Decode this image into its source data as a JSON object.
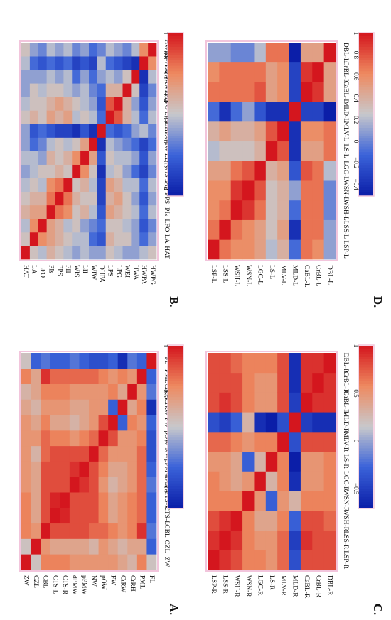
{
  "figure": {
    "panel_letters": [
      "A.",
      "B.",
      "C.",
      "D."
    ]
  },
  "chart_data": [
    {
      "type": "heatmap",
      "panel": "A.",
      "variables": [
        "ZW",
        "CZL",
        "CBL",
        "CTS-L",
        "CTS-R",
        "dPMW",
        "pPMW",
        "NW",
        "pOW",
        "FW",
        "CrRW",
        "CrRH",
        "PML",
        "FL"
      ],
      "colorbar": {
        "min": -0.7,
        "max": 1,
        "ticks": [
          1,
          0.5,
          0,
          -0.5
        ]
      },
      "colormap": [
        "#0b1ea8",
        "#3b63d9",
        "#c8c8cc",
        "#ee8a60",
        "#d4161e"
      ],
      "values": [
        [
          1,
          0.2,
          0.6,
          0.6,
          0.6,
          0.5,
          0.5,
          0.5,
          0.5,
          0.5,
          0.4,
          0.3,
          0.6,
          0.2
        ],
        [
          0.2,
          1,
          0.5,
          0.4,
          0.4,
          0.4,
          0.4,
          0.3,
          0.5,
          0.4,
          0.3,
          0.4,
          0.4,
          -0.3
        ],
        [
          0.6,
          0.5,
          1,
          0.8,
          0.8,
          0.8,
          0.8,
          0.7,
          0.7,
          0.6,
          0.5,
          0.6,
          0.9,
          -0.2
        ],
        [
          0.6,
          0.4,
          0.8,
          1,
          0.95,
          0.8,
          0.8,
          0.8,
          0.6,
          0.4,
          0.5,
          0.6,
          0.7,
          -0.3
        ],
        [
          0.6,
          0.4,
          0.8,
          0.95,
          1,
          0.8,
          0.8,
          0.8,
          0.6,
          0.4,
          0.5,
          0.6,
          0.7,
          -0.3
        ],
        [
          0.5,
          0.4,
          0.8,
          0.8,
          0.8,
          1,
          0.9,
          0.8,
          0.5,
          0.3,
          0.4,
          0.5,
          0.7,
          -0.2
        ],
        [
          0.5,
          0.4,
          0.8,
          0.8,
          0.8,
          0.9,
          1,
          0.8,
          0.6,
          0.4,
          0.4,
          0.5,
          0.7,
          -0.3
        ],
        [
          0.5,
          0.3,
          0.7,
          0.8,
          0.8,
          0.8,
          0.8,
          1,
          0.7,
          0.5,
          0.5,
          0.5,
          0.7,
          -0.4
        ],
        [
          0.5,
          0.5,
          0.7,
          0.6,
          0.6,
          0.5,
          0.6,
          0.7,
          1,
          0.8,
          0.5,
          0.5,
          0.6,
          -0.4
        ],
        [
          0.5,
          0.4,
          0.6,
          0.4,
          0.4,
          0.3,
          0.4,
          0.5,
          0.8,
          1,
          -0.3,
          0.6,
          0.5,
          -0.3
        ],
        [
          0.4,
          0.3,
          0.5,
          0.5,
          0.5,
          0.4,
          0.4,
          0.5,
          0.5,
          -0.3,
          1,
          0.4,
          0.6,
          -0.6
        ],
        [
          0.3,
          0.4,
          0.6,
          0.6,
          0.6,
          0.5,
          0.5,
          0.5,
          0.5,
          0.6,
          0.4,
          1,
          0.5,
          -0.2
        ],
        [
          0.6,
          0.4,
          0.9,
          0.7,
          0.7,
          0.7,
          0.7,
          0.7,
          0.6,
          0.5,
          0.6,
          0.5,
          1,
          -0.3
        ],
        [
          0.2,
          -0.3,
          -0.2,
          -0.3,
          -0.3,
          -0.2,
          -0.3,
          -0.4,
          -0.4,
          -0.3,
          -0.6,
          -0.2,
          -0.3,
          1
        ]
      ]
    },
    {
      "type": "heatmap",
      "panel": "B.",
      "variables": [
        "HAT",
        "LA",
        "LFO",
        "PIs",
        "PPS",
        "PII",
        "WIS",
        "LII",
        "WIW",
        "DHPA",
        "LPS",
        "LPG",
        "WEI",
        "HWA",
        "HWPA",
        "HWPG"
      ],
      "colorbar": {
        "min": -0.5,
        "max": 1,
        "ticks": [
          1,
          0.8,
          0.6,
          0.4,
          0.2,
          0,
          -0.2,
          -0.4
        ]
      },
      "colormap": [
        "#0b1ea8",
        "#3b63d9",
        "#c8c8cc",
        "#ee8a60",
        "#d4161e"
      ],
      "values": [
        [
          1,
          0.3,
          0.2,
          0.4,
          0.3,
          0.2,
          0.1,
          0.2,
          0.1,
          0.1,
          0.3,
          0.2,
          0.1,
          0.1,
          0.2,
          0.3
        ],
        [
          0.3,
          1,
          0.6,
          0.5,
          0.4,
          0.3,
          0.2,
          0.2,
          -0.1,
          -0.2,
          0.4,
          0.3,
          0.3,
          0.1,
          -0.1,
          0.1
        ],
        [
          0.2,
          0.6,
          1,
          0.5,
          0.4,
          0.2,
          0.3,
          0.1,
          0,
          -0.1,
          0.3,
          0.3,
          0.2,
          0.1,
          -0.2,
          0
        ],
        [
          0.4,
          0.5,
          0.5,
          1,
          0.7,
          0.6,
          0.3,
          0.4,
          0.2,
          -0.2,
          0.5,
          0.4,
          0.3,
          0.2,
          -0.1,
          0.2
        ],
        [
          0.3,
          0.4,
          0.4,
          0.7,
          1,
          0.7,
          0.4,
          0.3,
          0.3,
          -0.3,
          0.4,
          0.5,
          0.3,
          0.1,
          -0.2,
          0.1
        ],
        [
          0.2,
          0.3,
          0.2,
          0.6,
          0.7,
          1,
          0.3,
          0.4,
          0.2,
          -0.3,
          0.5,
          0.4,
          0.2,
          0.2,
          -0.1,
          0.2
        ],
        [
          0.1,
          0.2,
          0.3,
          0.3,
          0.4,
          0.3,
          1,
          0.6,
          0.3,
          -0.4,
          0.2,
          0.3,
          0.1,
          -0.1,
          -0.3,
          0
        ],
        [
          0.2,
          0.2,
          0.1,
          0.4,
          0.3,
          0.4,
          0.6,
          1,
          0.5,
          -0.2,
          0.3,
          0.2,
          0.2,
          0.1,
          -0.2,
          0.1
        ],
        [
          0.1,
          -0.1,
          0,
          0.2,
          0.3,
          0.2,
          0.3,
          0.5,
          1,
          -0.4,
          0.2,
          0.1,
          0,
          -0.1,
          -0.3,
          -0.1
        ],
        [
          0.1,
          -0.2,
          -0.1,
          -0.2,
          -0.3,
          -0.3,
          -0.4,
          -0.2,
          -0.4,
          1,
          -0.1,
          -0.2,
          -0.1,
          0.1,
          0.2,
          0
        ],
        [
          0.3,
          0.4,
          0.3,
          0.5,
          0.4,
          0.5,
          0.2,
          0.3,
          0.2,
          -0.1,
          1,
          0.8,
          0.4,
          0.2,
          -0.1,
          0.2
        ],
        [
          0.2,
          0.3,
          0.3,
          0.4,
          0.5,
          0.4,
          0.3,
          0.2,
          0.1,
          -0.2,
          0.8,
          1,
          0.4,
          0.1,
          -0.2,
          0.1
        ],
        [
          0.1,
          0.3,
          0.2,
          0.3,
          0.3,
          0.2,
          0.1,
          0.2,
          0,
          -0.1,
          0.4,
          0.4,
          1,
          0.3,
          -0.3,
          0
        ],
        [
          0.1,
          0.1,
          0.1,
          0.2,
          0.1,
          0.2,
          -0.1,
          0.1,
          -0.1,
          0.1,
          0.2,
          0.1,
          0.3,
          1,
          -0.4,
          0.2
        ],
        [
          0.2,
          -0.1,
          -0.2,
          -0.1,
          -0.2,
          -0.1,
          -0.3,
          -0.2,
          -0.3,
          0.2,
          -0.1,
          -0.2,
          -0.3,
          -0.4,
          1,
          0.6
        ],
        [
          0.3,
          0.1,
          0,
          0.2,
          0.1,
          0.2,
          0,
          0.1,
          -0.1,
          0,
          0.2,
          0.1,
          0,
          0.2,
          0.6,
          1
        ]
      ]
    },
    {
      "type": "heatmap",
      "panel": "C.",
      "variables": [
        "LSP-R",
        "LSS-R",
        "WSH-R",
        "WSN-R",
        "LGC-R",
        "LS-R",
        "MLV-R",
        "MLD-R",
        "CaBL-R",
        "CrBL-R",
        "DBL-R"
      ],
      "colorbar": {
        "min": -0.7,
        "max": 1,
        "ticks": [
          1,
          0.5,
          0,
          -0.5
        ]
      },
      "colormap": [
        "#0b1ea8",
        "#3b63d9",
        "#c8c8cc",
        "#ee8a60",
        "#d4161e"
      ],
      "values": [
        [
          1,
          0.9,
          0.8,
          0.6,
          0.6,
          0.5,
          0.7,
          -0.4,
          0.8,
          0.8,
          0.8
        ],
        [
          0.9,
          1,
          0.9,
          0.6,
          0.5,
          0.5,
          0.7,
          -0.5,
          0.9,
          0.8,
          0.8
        ],
        [
          0.8,
          0.9,
          1,
          0.6,
          0.4,
          0.4,
          0.6,
          -0.3,
          0.8,
          0.8,
          0.7
        ],
        [
          0.6,
          0.6,
          0.6,
          1,
          0.5,
          -0.3,
          0.5,
          0.3,
          0.6,
          0.6,
          0.6
        ],
        [
          0.6,
          0.5,
          0.4,
          0.5,
          1,
          0.3,
          0.6,
          -0.6,
          0.5,
          0.5,
          0.6
        ],
        [
          0.5,
          0.5,
          0.4,
          -0.3,
          0.3,
          1,
          0.6,
          -0.7,
          0.5,
          0.5,
          0.6
        ],
        [
          0.7,
          0.7,
          0.6,
          0.5,
          0.6,
          0.6,
          1,
          -0.4,
          0.8,
          0.8,
          0.8
        ],
        [
          -0.4,
          -0.5,
          -0.3,
          0.3,
          -0.6,
          -0.7,
          -0.4,
          1,
          -0.5,
          -0.6,
          -0.6
        ],
        [
          0.8,
          0.9,
          0.8,
          0.6,
          0.5,
          0.5,
          0.8,
          -0.5,
          1,
          0.9,
          0.9
        ],
        [
          0.8,
          0.8,
          0.8,
          0.6,
          0.5,
          0.5,
          0.8,
          -0.6,
          0.9,
          1,
          0.9
        ],
        [
          0.8,
          0.8,
          0.7,
          0.6,
          0.6,
          0.6,
          0.8,
          -0.6,
          0.9,
          0.9,
          1
        ]
      ]
    },
    {
      "type": "heatmap",
      "panel": "D.",
      "variables": [
        "LSP-L",
        "LSS-L",
        "WSH-L",
        "WSN-L",
        "LGC-L",
        "LS-L",
        "MLV-L",
        "MLD-L",
        "CaBL-L",
        "CrBL-L",
        "DBL-L"
      ],
      "colorbar": {
        "min": -0.5,
        "max": 1,
        "ticks": [
          1,
          0.8,
          0.6,
          0.4,
          0.2,
          0,
          -0.2,
          -0.4
        ]
      },
      "colormap": [
        "#0b1ea8",
        "#3b63d9",
        "#c8c8cc",
        "#ee8a60",
        "#d4161e"
      ],
      "values": [
        [
          1,
          0.7,
          0.6,
          0.6,
          0.5,
          0.2,
          0.4,
          -0.1,
          0.7,
          0.6,
          0.1
        ],
        [
          0.7,
          1,
          0.7,
          0.6,
          0.5,
          0.3,
          0.5,
          -0.4,
          0.7,
          0.7,
          0.1
        ],
        [
          0.6,
          0.7,
          1,
          0.9,
          0.7,
          0.3,
          0.4,
          -0.1,
          0.7,
          0.7,
          0
        ],
        [
          0.6,
          0.6,
          0.9,
          1,
          0.8,
          0.3,
          0.4,
          0.1,
          0.7,
          0.7,
          0
        ],
        [
          0.5,
          0.5,
          0.7,
          0.8,
          1,
          0.4,
          0.5,
          -0.2,
          0.8,
          0.7,
          0.2
        ],
        [
          0.2,
          0.3,
          0.3,
          0.3,
          0.4,
          1,
          0.8,
          -0.4,
          0.5,
          0.5,
          0.7
        ],
        [
          0.4,
          0.5,
          0.4,
          0.4,
          0.5,
          0.8,
          1,
          -0.4,
          0.6,
          0.6,
          0.7
        ],
        [
          -0.1,
          -0.4,
          -0.1,
          0.1,
          -0.2,
          -0.4,
          -0.4,
          1,
          -0.3,
          -0.3,
          -0.5
        ],
        [
          0.7,
          0.7,
          0.7,
          0.7,
          0.8,
          0.5,
          0.6,
          -0.3,
          1,
          0.9,
          0.5
        ],
        [
          0.6,
          0.7,
          0.7,
          0.7,
          0.7,
          0.5,
          0.6,
          -0.3,
          0.9,
          1,
          0.5
        ],
        [
          0.1,
          0.1,
          0,
          0,
          0.2,
          0.7,
          0.7,
          -0.5,
          0.5,
          0.5,
          1
        ]
      ]
    }
  ]
}
